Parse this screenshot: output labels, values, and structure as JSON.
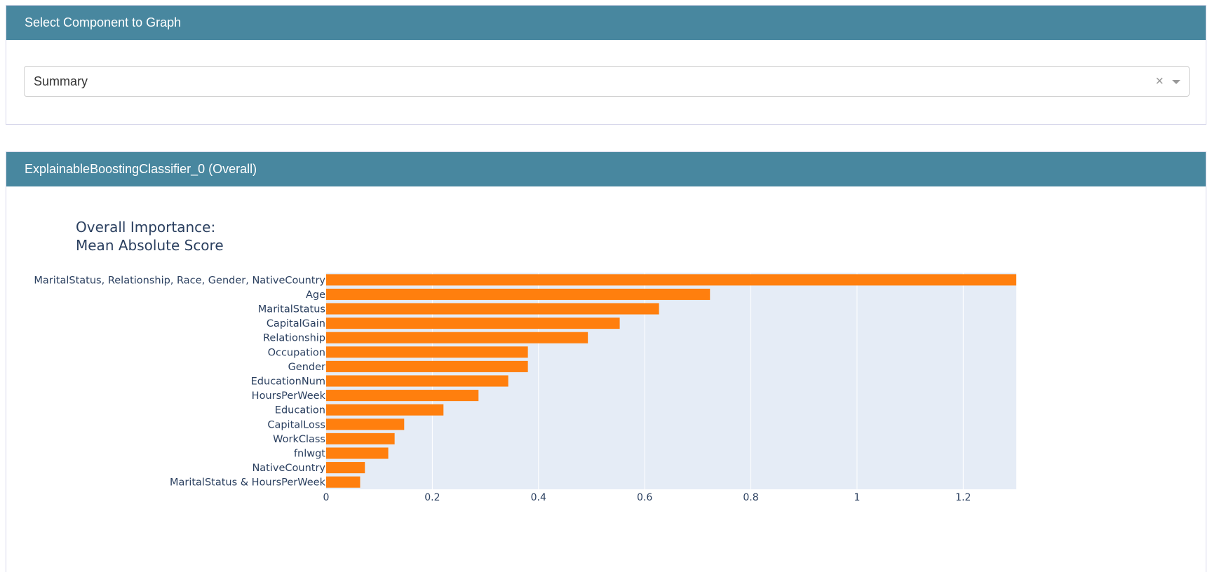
{
  "select_panel": {
    "title": "Select Component to Graph",
    "dropdown": {
      "value": "Summary",
      "clear_symbol": "×"
    }
  },
  "graph_panel": {
    "title": "ExplainableBoostingClassifier_0 (Overall)"
  },
  "colors": {
    "header_bg": "#48879f",
    "bar": "#ff7f0e",
    "plot_bg": "#e5ecf6",
    "text": "#2a3f5f"
  },
  "chart_data": {
    "type": "bar",
    "orientation": "horizontal",
    "title_lines": [
      "Overall Importance:",
      "Mean Absolute Score"
    ],
    "categories": [
      "MaritalStatus, Relationship, Race, Gender, NativeCountry",
      "Age",
      "MaritalStatus",
      "CapitalGain",
      "Relationship",
      "Occupation",
      "Gender",
      "EducationNum",
      "HoursPerWeek",
      "Education",
      "CapitalLoss",
      "WorkClass",
      "fnlwgt",
      "NativeCountry",
      "MaritalStatus & HoursPerWeek"
    ],
    "values": [
      1.3,
      0.723,
      0.627,
      0.553,
      0.493,
      0.38,
      0.38,
      0.343,
      0.287,
      0.221,
      0.147,
      0.129,
      0.117,
      0.073,
      0.064
    ],
    "xlim": [
      0,
      1.3
    ],
    "xticks": [
      0,
      0.2,
      0.4,
      0.6,
      0.8,
      1,
      1.2
    ],
    "xtick_labels": [
      "0",
      "0.2",
      "0.4",
      "0.6",
      "0.8",
      "1",
      "1.2"
    ],
    "grid": true,
    "legend": "none"
  }
}
